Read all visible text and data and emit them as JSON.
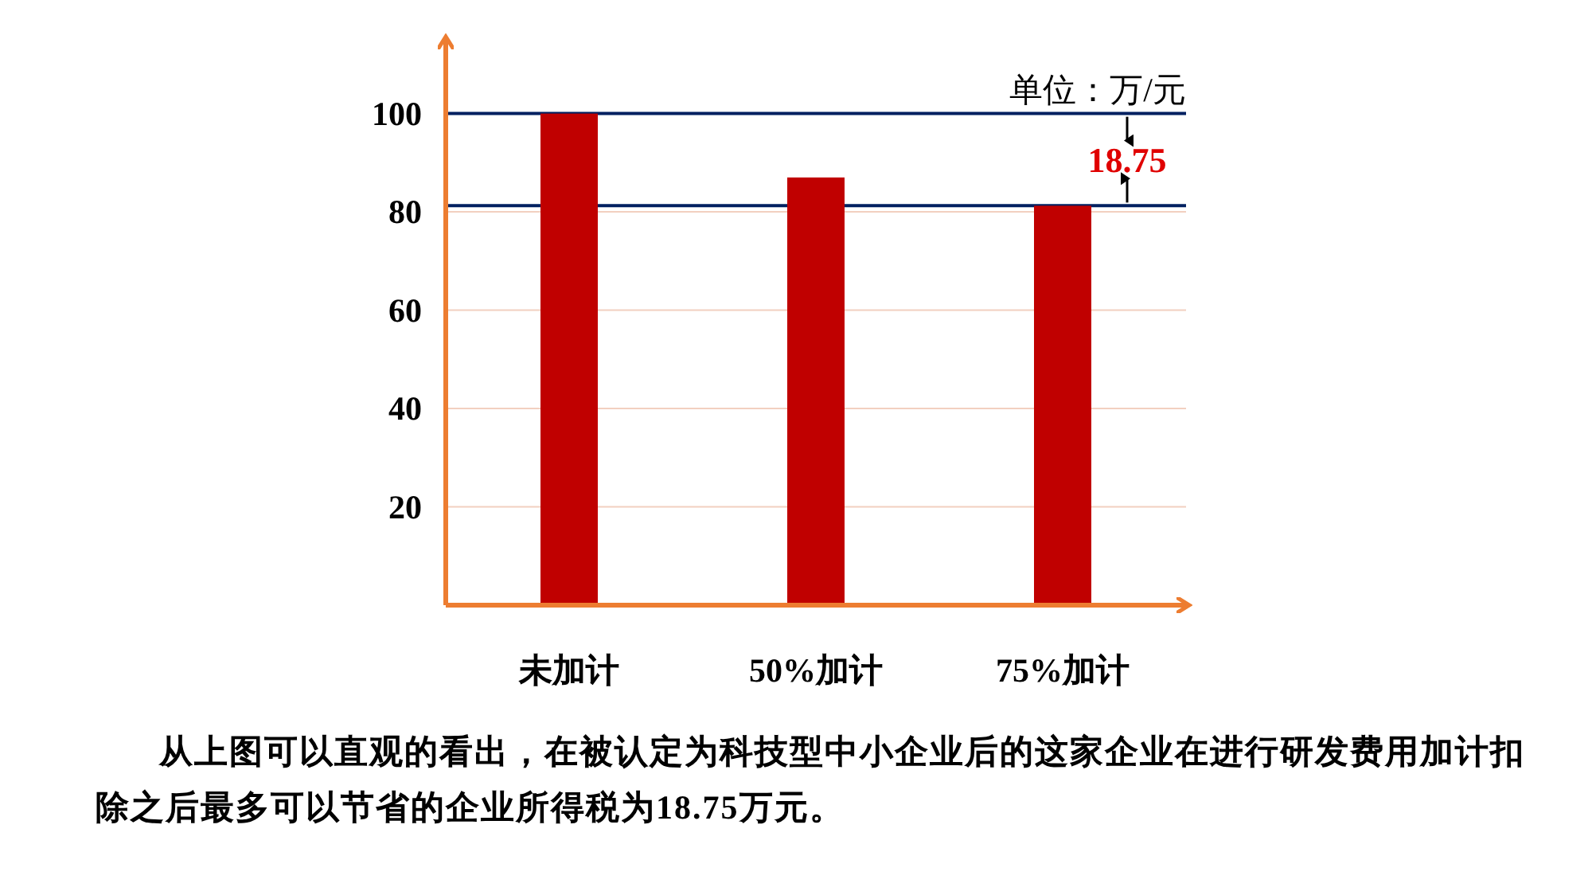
{
  "chart_data": {
    "type": "bar",
    "categories": [
      "未加计",
      "50%加计",
      "75%加计"
    ],
    "values": [
      100,
      87,
      81.25
    ],
    "color": "#c00000",
    "ylim": [
      0,
      115
    ],
    "yticks": [
      20,
      40,
      60,
      80,
      100
    ],
    "grid": "y",
    "ref_lines": [
      {
        "axis": "y",
        "value": 100,
        "color": "#002060"
      },
      {
        "axis": "y",
        "value": 81.25,
        "color": "#002060"
      }
    ],
    "annotations": [
      "单位：万/元",
      "18.75",
      "从上图可以直观的看出，在被认定为科技型中小企业后的这家企业在进行研发费用加计扣除之后最多可以节省的企业所得税为18.75万元。"
    ]
  }
}
